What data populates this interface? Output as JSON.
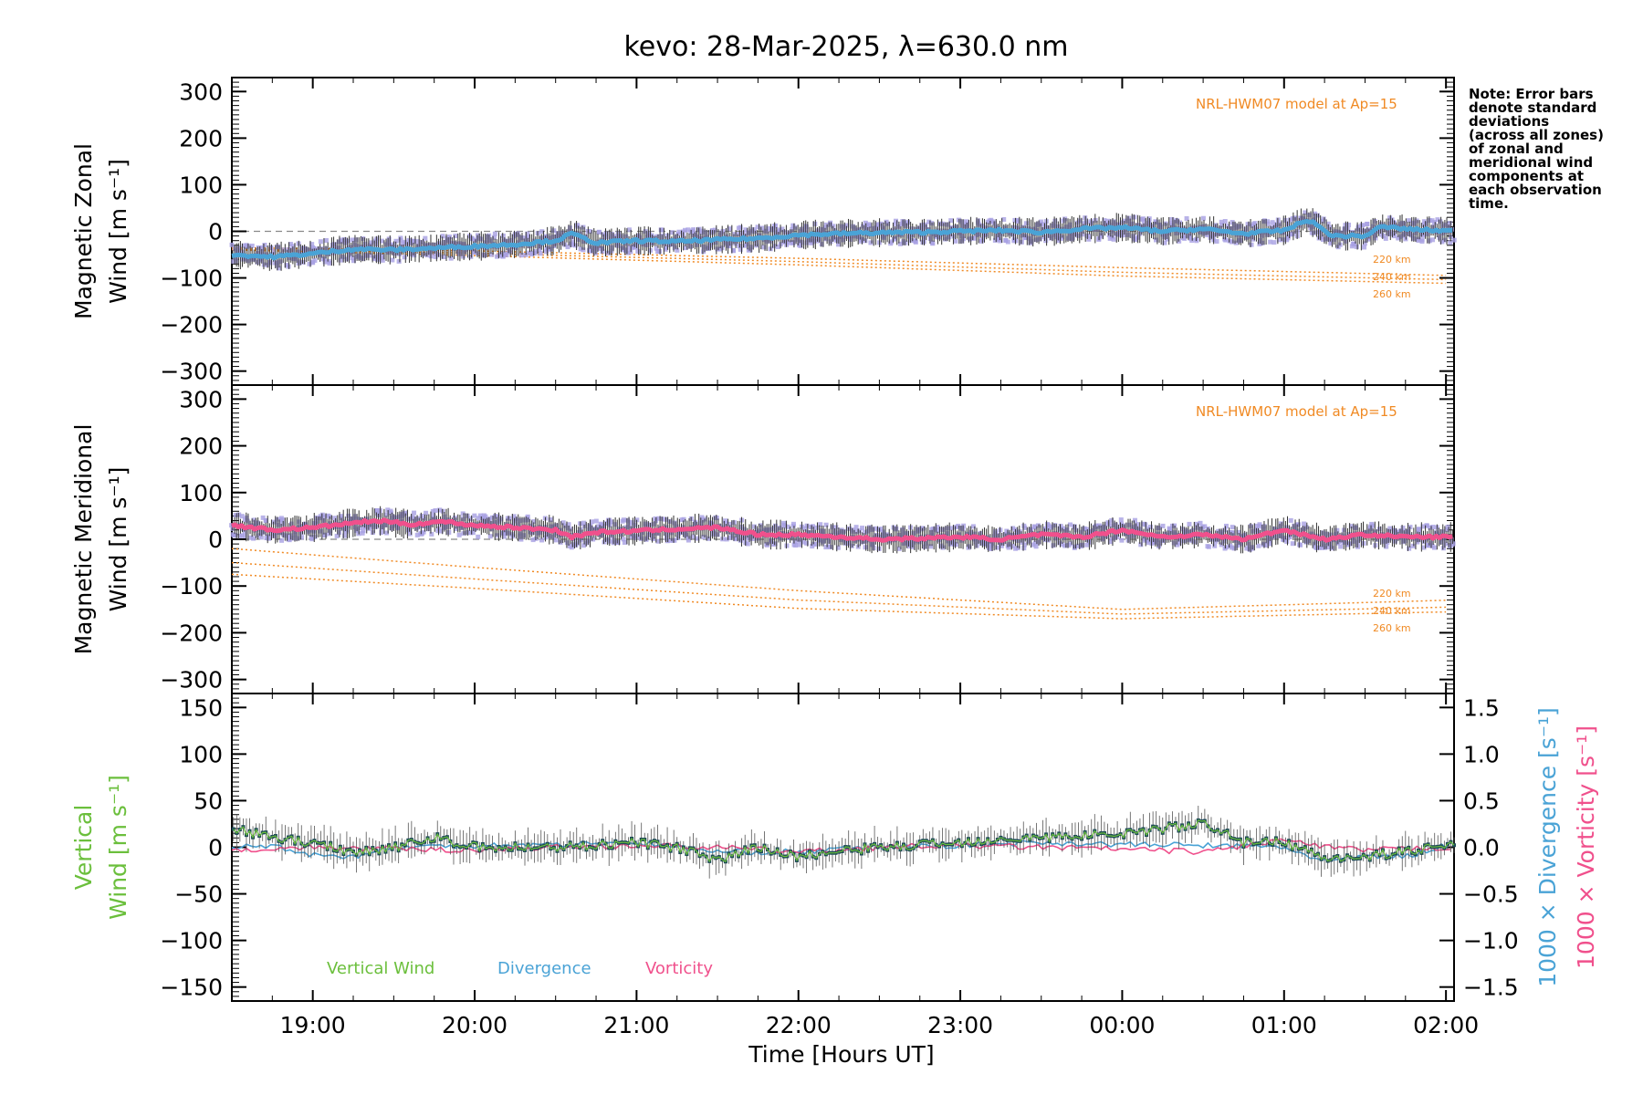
{
  "title": "kevo: 28-Mar-2025, λ=630.0 nm",
  "xlabel": "Time [Hours UT]",
  "xticks": [
    "19:00",
    "20:00",
    "21:00",
    "22:00",
    "23:00",
    "00:00",
    "01:00",
    "02:00"
  ],
  "note": [
    "Note: Error bars",
    "denote standard",
    "deviations",
    "(across all zones)",
    "of zonal and",
    "meridional wind",
    "components at",
    "each observation",
    "time."
  ],
  "colors": {
    "zonal": "#4aa3d6",
    "meridional": "#f0508c",
    "model": "#f08a24",
    "scatter": "#a7a0e2",
    "vertical": "#6bbf3c",
    "divergence": "#4aa3d6",
    "vorticity": "#f0508c",
    "points": "#1d4a55"
  },
  "chart_data": [
    {
      "type": "line",
      "title": "",
      "ylabel_line1": "Magnetic Zonal",
      "ylabel_line2": "Wind [m s⁻¹]",
      "ylim": [
        -330,
        330
      ],
      "yticks": [
        "300",
        "200",
        "100",
        "0",
        "−100",
        "−200",
        "−300"
      ],
      "ytick_values": [
        300,
        200,
        100,
        0,
        -100,
        -200,
        -300
      ],
      "xlim_hours": [
        18.5,
        26.05
      ],
      "model_label": "NRL-HWM07 model at Ap=15",
      "model_series": [
        {
          "name": "220 km",
          "x": [
            18.5,
            20,
            22,
            24,
            26.05
          ],
          "values": [
            -35,
            -42,
            -58,
            -78,
            -95
          ]
        },
        {
          "name": "240 km",
          "x": [
            18.5,
            20,
            22,
            24,
            26.05
          ],
          "values": [
            -38,
            -47,
            -65,
            -88,
            -104
          ]
        },
        {
          "name": "260 km",
          "x": [
            18.5,
            20,
            22,
            24,
            26.05
          ],
          "values": [
            -40,
            -52,
            -72,
            -96,
            -112
          ]
        }
      ],
      "series": [
        {
          "name": "Magnetic Zonal Wind",
          "x": [
            18.5,
            18.75,
            19.0,
            19.25,
            19.5,
            19.75,
            20.0,
            20.25,
            20.5,
            20.6,
            20.75,
            21.0,
            21.25,
            21.5,
            21.75,
            22.0,
            22.25,
            22.5,
            22.75,
            23.0,
            23.25,
            23.5,
            23.75,
            24.0,
            24.25,
            24.5,
            24.75,
            25.0,
            25.15,
            25.3,
            25.5,
            25.6,
            25.75,
            26.05
          ],
          "values": [
            -50,
            -55,
            -48,
            -38,
            -40,
            -36,
            -32,
            -28,
            -20,
            -5,
            -25,
            -20,
            -22,
            -18,
            -15,
            -8,
            -5,
            -3,
            -2,
            0,
            2,
            -2,
            5,
            8,
            0,
            5,
            -5,
            2,
            25,
            -10,
            -10,
            10,
            5,
            0
          ]
        }
      ]
    },
    {
      "type": "line",
      "title": "",
      "ylabel_line1": "Magnetic Meridional",
      "ylabel_line2": "Wind [m s⁻¹]",
      "ylim": [
        -330,
        330
      ],
      "yticks": [
        "300",
        "200",
        "100",
        "0",
        "−100",
        "−200",
        "−300"
      ],
      "ytick_values": [
        300,
        200,
        100,
        0,
        -100,
        -200,
        -300
      ],
      "xlim_hours": [
        18.5,
        26.05
      ],
      "model_label": "NRL-HWM07 model at Ap=15",
      "model_series": [
        {
          "name": "220 km",
          "x": [
            18.5,
            20,
            22,
            24,
            26.05
          ],
          "values": [
            -20,
            -60,
            -110,
            -150,
            -130
          ]
        },
        {
          "name": "240 km",
          "x": [
            18.5,
            20,
            22,
            24,
            26.05
          ],
          "values": [
            -50,
            -85,
            -130,
            -160,
            -145
          ]
        },
        {
          "name": "260 km",
          "x": [
            18.5,
            20,
            22,
            24,
            26.05
          ],
          "values": [
            -75,
            -105,
            -148,
            -170,
            -155
          ]
        }
      ],
      "series": [
        {
          "name": "Magnetic Meridional Wind",
          "x": [
            18.5,
            18.75,
            19.0,
            19.25,
            19.4,
            19.6,
            19.8,
            20.0,
            20.25,
            20.5,
            20.6,
            20.75,
            21.0,
            21.25,
            21.5,
            21.75,
            22.0,
            22.25,
            22.5,
            22.75,
            23.0,
            23.25,
            23.5,
            23.75,
            24.0,
            24.25,
            24.5,
            24.75,
            25.0,
            25.25,
            25.5,
            25.75,
            26.05
          ],
          "values": [
            30,
            20,
            25,
            35,
            40,
            32,
            38,
            30,
            25,
            20,
            5,
            15,
            18,
            22,
            25,
            10,
            10,
            5,
            0,
            2,
            5,
            0,
            10,
            5,
            20,
            5,
            10,
            0,
            20,
            0,
            10,
            5,
            5
          ]
        }
      ]
    },
    {
      "type": "line",
      "title": "",
      "ylabel_line1": "Vertical",
      "ylabel_line2": "Wind [m s⁻¹]",
      "ylim": [
        -165,
        165
      ],
      "yticks": [
        "150",
        "100",
        "50",
        "0",
        "−50",
        "−100",
        "−150"
      ],
      "ytick_values": [
        150,
        100,
        50,
        0,
        -50,
        -100,
        -150
      ],
      "y2lim": [
        -1.65,
        1.65
      ],
      "y2ticks": [
        "1.5",
        "1.0",
        "0.5",
        "0.0",
        "−0.5",
        "−1.0",
        "−1.5"
      ],
      "y2tick_values": [
        1.5,
        1.0,
        0.5,
        0.0,
        -0.5,
        -1.0,
        -1.5
      ],
      "y2label_a": "1000 × Divergence [s⁻¹]",
      "y2label_b": "1000 × Vorticity [s⁻¹]",
      "xlim_hours": [
        18.5,
        26.05
      ],
      "legend": [
        "Vertical Wind",
        "Divergence",
        "Vorticity"
      ],
      "series": [
        {
          "name": "Vertical Wind",
          "axis": "left",
          "x": [
            18.5,
            18.75,
            19.0,
            19.25,
            19.5,
            19.75,
            20.0,
            20.5,
            21.0,
            21.25,
            21.5,
            21.75,
            22.0,
            22.5,
            23.0,
            23.25,
            23.5,
            24.0,
            24.25,
            24.5,
            24.6,
            24.75,
            25.0,
            25.25,
            25.5,
            25.75,
            26.05
          ],
          "values": [
            20,
            10,
            5,
            -5,
            0,
            10,
            0,
            0,
            5,
            0,
            -15,
            0,
            -10,
            0,
            5,
            10,
            10,
            15,
            20,
            25,
            20,
            5,
            5,
            -10,
            -10,
            -5,
            5
          ]
        },
        {
          "name": "Divergence",
          "axis": "right",
          "x": [
            18.5,
            18.75,
            19.0,
            19.25,
            19.5,
            20.0,
            20.5,
            21.0,
            21.5,
            22.0,
            22.5,
            23.0,
            23.5,
            24.0,
            24.5,
            25.0,
            25.25,
            25.5,
            25.75,
            26.05
          ],
          "values": [
            0.0,
            0.02,
            -0.08,
            -0.1,
            0.0,
            0.02,
            0.03,
            0.05,
            -0.05,
            -0.05,
            0.0,
            0.02,
            0.05,
            0.03,
            0.02,
            0.0,
            -0.15,
            -0.1,
            -0.1,
            0.05
          ]
        },
        {
          "name": "Vorticity",
          "axis": "right",
          "x": [
            18.5,
            19.0,
            19.5,
            20.0,
            20.5,
            21.0,
            21.5,
            22.0,
            22.5,
            23.0,
            23.5,
            24.0,
            24.5,
            25.0,
            25.25,
            25.5,
            26.05
          ],
          "values": [
            -0.03,
            0.0,
            -0.02,
            -0.03,
            0.0,
            0.02,
            0.0,
            -0.05,
            0.0,
            0.02,
            0.0,
            -0.02,
            -0.05,
            0.08,
            0.0,
            -0.03,
            0.0
          ]
        }
      ]
    }
  ]
}
